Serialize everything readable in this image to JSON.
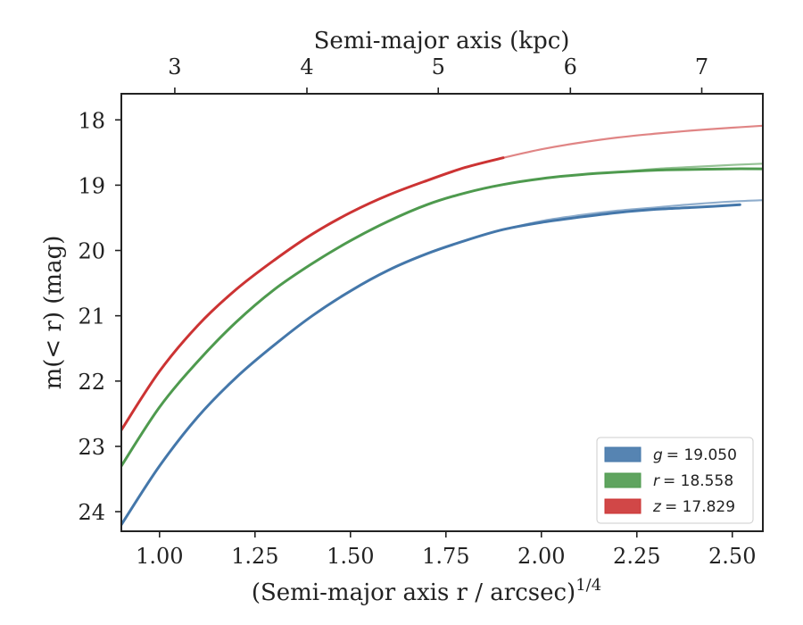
{
  "chart_data": {
    "type": "line",
    "xlabel": "(Semi-major axis r / arcsec)",
    "xlabel_exponent": "1/4",
    "ylabel": "m(< r) (mag)",
    "top_xlabel": "Semi-major axis (kpc)",
    "xlim": [
      0.9,
      2.58
    ],
    "ylim": [
      24.3,
      17.6
    ],
    "y_inverted": true,
    "x_ticks": [
      1.0,
      1.25,
      1.5,
      1.75,
      2.0,
      2.25,
      2.5
    ],
    "x_tick_labels": [
      "1.00",
      "1.25",
      "1.50",
      "1.75",
      "2.00",
      "2.25",
      "2.50"
    ],
    "y_ticks": [
      18,
      19,
      20,
      21,
      22,
      23,
      24
    ],
    "y_tick_labels": [
      "18",
      "19",
      "20",
      "21",
      "22",
      "23",
      "24"
    ],
    "top_ticks": [
      {
        "label": "3",
        "x": 1.04
      },
      {
        "label": "4",
        "x": 1.386
      },
      {
        "label": "5",
        "x": 1.73
      },
      {
        "label": "6",
        "x": 2.076
      },
      {
        "label": "7",
        "x": 2.42
      }
    ],
    "grid": false,
    "legend_position": "bottom-right",
    "series": [
      {
        "name": "g = 19.050",
        "legend_symbol": "g",
        "legend_value": "= 19.050",
        "color": "#4477aa",
        "observed": {
          "x": [
            0.9,
            1.0,
            1.1,
            1.2,
            1.3,
            1.4,
            1.5,
            1.6,
            1.7,
            1.8,
            1.9,
            2.0,
            2.1,
            2.2,
            2.3,
            2.4,
            2.52
          ],
          "y": [
            24.2,
            23.3,
            22.55,
            21.95,
            21.45,
            21.0,
            20.62,
            20.3,
            20.05,
            19.85,
            19.68,
            19.57,
            19.49,
            19.42,
            19.37,
            19.34,
            19.3
          ]
        },
        "model": {
          "x": [
            1.9,
            2.0,
            2.1,
            2.2,
            2.3,
            2.4,
            2.5,
            2.58
          ],
          "y": [
            19.68,
            19.55,
            19.46,
            19.39,
            19.34,
            19.29,
            19.25,
            19.23
          ]
        }
      },
      {
        "name": "r = 18.558",
        "legend_symbol": "r",
        "legend_value": "= 18.558",
        "color": "#4e9a4e",
        "observed": {
          "x": [
            0.9,
            1.0,
            1.1,
            1.2,
            1.3,
            1.4,
            1.5,
            1.6,
            1.7,
            1.8,
            1.9,
            2.0,
            2.1,
            2.2,
            2.3,
            2.4,
            2.5,
            2.58
          ],
          "y": [
            23.3,
            22.4,
            21.7,
            21.1,
            20.6,
            20.2,
            19.85,
            19.55,
            19.3,
            19.12,
            18.99,
            18.9,
            18.84,
            18.8,
            18.77,
            18.76,
            18.75,
            18.75
          ]
        },
        "model": {
          "x": [
            2.2,
            2.3,
            2.4,
            2.5,
            2.58
          ],
          "y": [
            18.8,
            18.75,
            18.72,
            18.69,
            18.67
          ]
        }
      },
      {
        "name": "z = 17.829",
        "legend_symbol": "z",
        "legend_value": "= 17.829",
        "color": "#cc3333",
        "observed": {
          "x": [
            0.9,
            1.0,
            1.1,
            1.2,
            1.3,
            1.4,
            1.5,
            1.6,
            1.7,
            1.8,
            1.9
          ],
          "y": [
            22.75,
            21.85,
            21.15,
            20.6,
            20.15,
            19.75,
            19.42,
            19.15,
            18.93,
            18.73,
            18.58
          ]
        },
        "model": {
          "x": [
            1.9,
            2.0,
            2.1,
            2.2,
            2.3,
            2.4,
            2.5,
            2.58
          ],
          "y": [
            18.58,
            18.45,
            18.35,
            18.27,
            18.21,
            18.16,
            18.12,
            18.09
          ]
        }
      }
    ]
  }
}
